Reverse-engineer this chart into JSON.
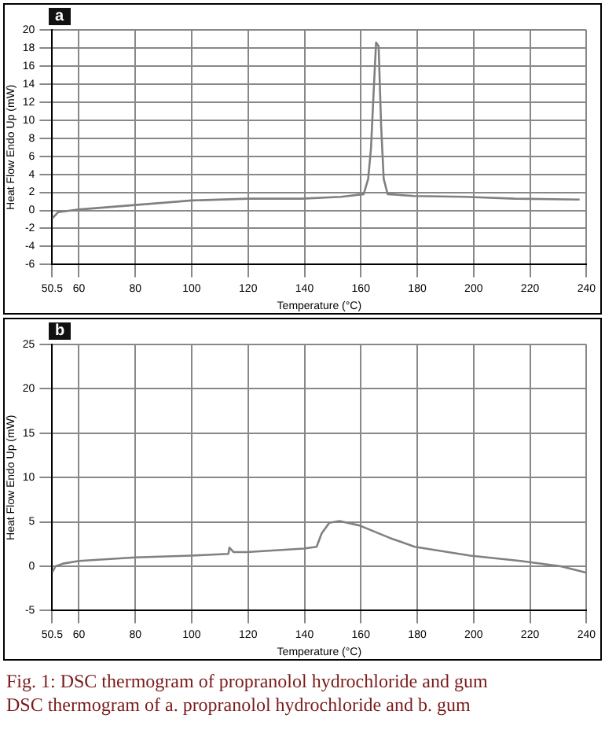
{
  "chart_data": [
    {
      "type": "line",
      "xlabel": "Temperature (°C)",
      "ylabel": "Heat Flow Endo Up (mW)",
      "annotations": [
        "a"
      ],
      "grid": true,
      "legend": false,
      "marker": "none",
      "line_style": "solid",
      "xlim": [
        50.5,
        240
      ],
      "xticks": [
        50.5,
        60,
        80,
        100,
        120,
        140,
        160,
        180,
        200,
        220,
        240
      ],
      "ylim": [
        -6,
        20
      ],
      "yticks": [
        -6,
        -4,
        -2,
        0,
        2,
        4,
        6,
        8,
        10,
        12,
        14,
        16,
        18,
        20
      ],
      "series": [
        {
          "color": "#808080",
          "x": [
            50.5,
            52.6,
            60,
            80,
            100,
            120,
            139,
            153,
            161,
            162.6,
            163.6,
            164.7,
            165.4,
            166.3,
            167.2,
            168.1,
            169.5,
            179,
            197,
            214.6,
            237.6
          ],
          "values": [
            -0.9,
            -0.2,
            0.1,
            0.6,
            1.1,
            1.3,
            1.3,
            1.5,
            1.8,
            3.5,
            6.9,
            14.2,
            18.6,
            18.2,
            9.3,
            3.5,
            1.8,
            1.6,
            1.5,
            1.3,
            1.2
          ]
        }
      ]
    },
    {
      "type": "line",
      "xlabel": "Temperature (°C)",
      "ylabel": "Heat Flow Endo Up (mW)",
      "annotations": [
        "b",
        "Fig. 1: DSC thermogram of propranolol hydrochloride and gum",
        "DSC thermogram of a. propranolol hydrochloride and b. gum"
      ],
      "grid": true,
      "legend": false,
      "marker": "none",
      "line_style": "solid",
      "xlim": [
        50.5,
        240
      ],
      "xticks": [
        50.5,
        60,
        80,
        100,
        120,
        140,
        160,
        180,
        200,
        220,
        240
      ],
      "ylim": [
        -5,
        25
      ],
      "yticks": [
        -5,
        0,
        5,
        10,
        15,
        20,
        25
      ],
      "series": [
        {
          "color": "#808080",
          "x": [
            50.5,
            51.7,
            54.4,
            60,
            80,
            99.6,
            113,
            113.4,
            114.8,
            119.6,
            139.8,
            144.3,
            146.1,
            148.8,
            152.4,
            159.5,
            170.2,
            179.1,
            198.8,
            216.6,
            230.9,
            239.8
          ],
          "values": [
            -0.7,
            0,
            0.3,
            0.6,
            1,
            1.2,
            1.4,
            2.1,
            1.6,
            1.6,
            2,
            2.2,
            3.7,
            4.9,
            5.1,
            4.6,
            3.2,
            2.2,
            1.2,
            0.6,
            0,
            -0.7
          ]
        }
      ]
    }
  ]
}
